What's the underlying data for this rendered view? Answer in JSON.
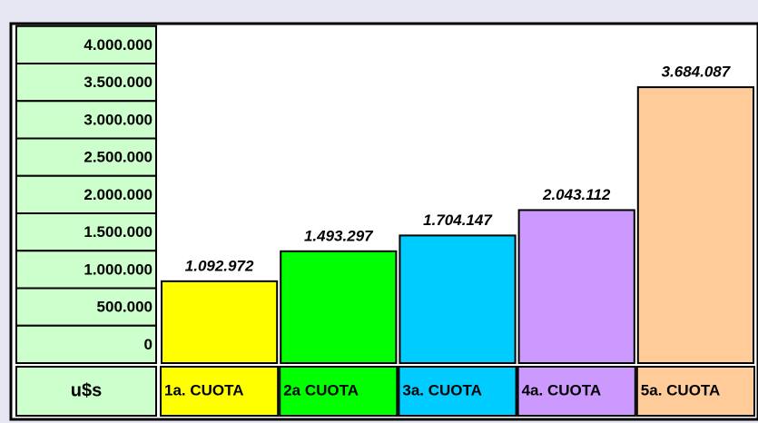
{
  "chart_data": {
    "type": "bar",
    "unit_label": "u$s",
    "categories": [
      "1a. CUOTA",
      "2a CUOTA",
      "3a. CUOTA",
      "4a. CUOTA",
      "5a. CUOTA"
    ],
    "values": [
      1092972,
      1493297,
      1704147,
      2043112,
      3684087
    ],
    "value_labels": [
      "1.092.972",
      "1.493.297",
      "1.704.147",
      "2.043.112",
      "3.684.087"
    ],
    "colors": [
      "#ffff00",
      "#00ff00",
      "#00ccff",
      "#cc99ff",
      "#ffcc99"
    ],
    "ylim": [
      0,
      4000000
    ],
    "yticks": [
      {
        "value": 4000000,
        "label": "4.000.000"
      },
      {
        "value": 3500000,
        "label": "3.500.000"
      },
      {
        "value": 3000000,
        "label": "3.000.000"
      },
      {
        "value": 2500000,
        "label": "2.500.000"
      },
      {
        "value": 2000000,
        "label": "2.000.000"
      },
      {
        "value": 1500000,
        "label": "1.500.000"
      },
      {
        "value": 1000000,
        "label": "1.000.000"
      },
      {
        "value": 500000,
        "label": "500.000"
      },
      0
    ]
  }
}
